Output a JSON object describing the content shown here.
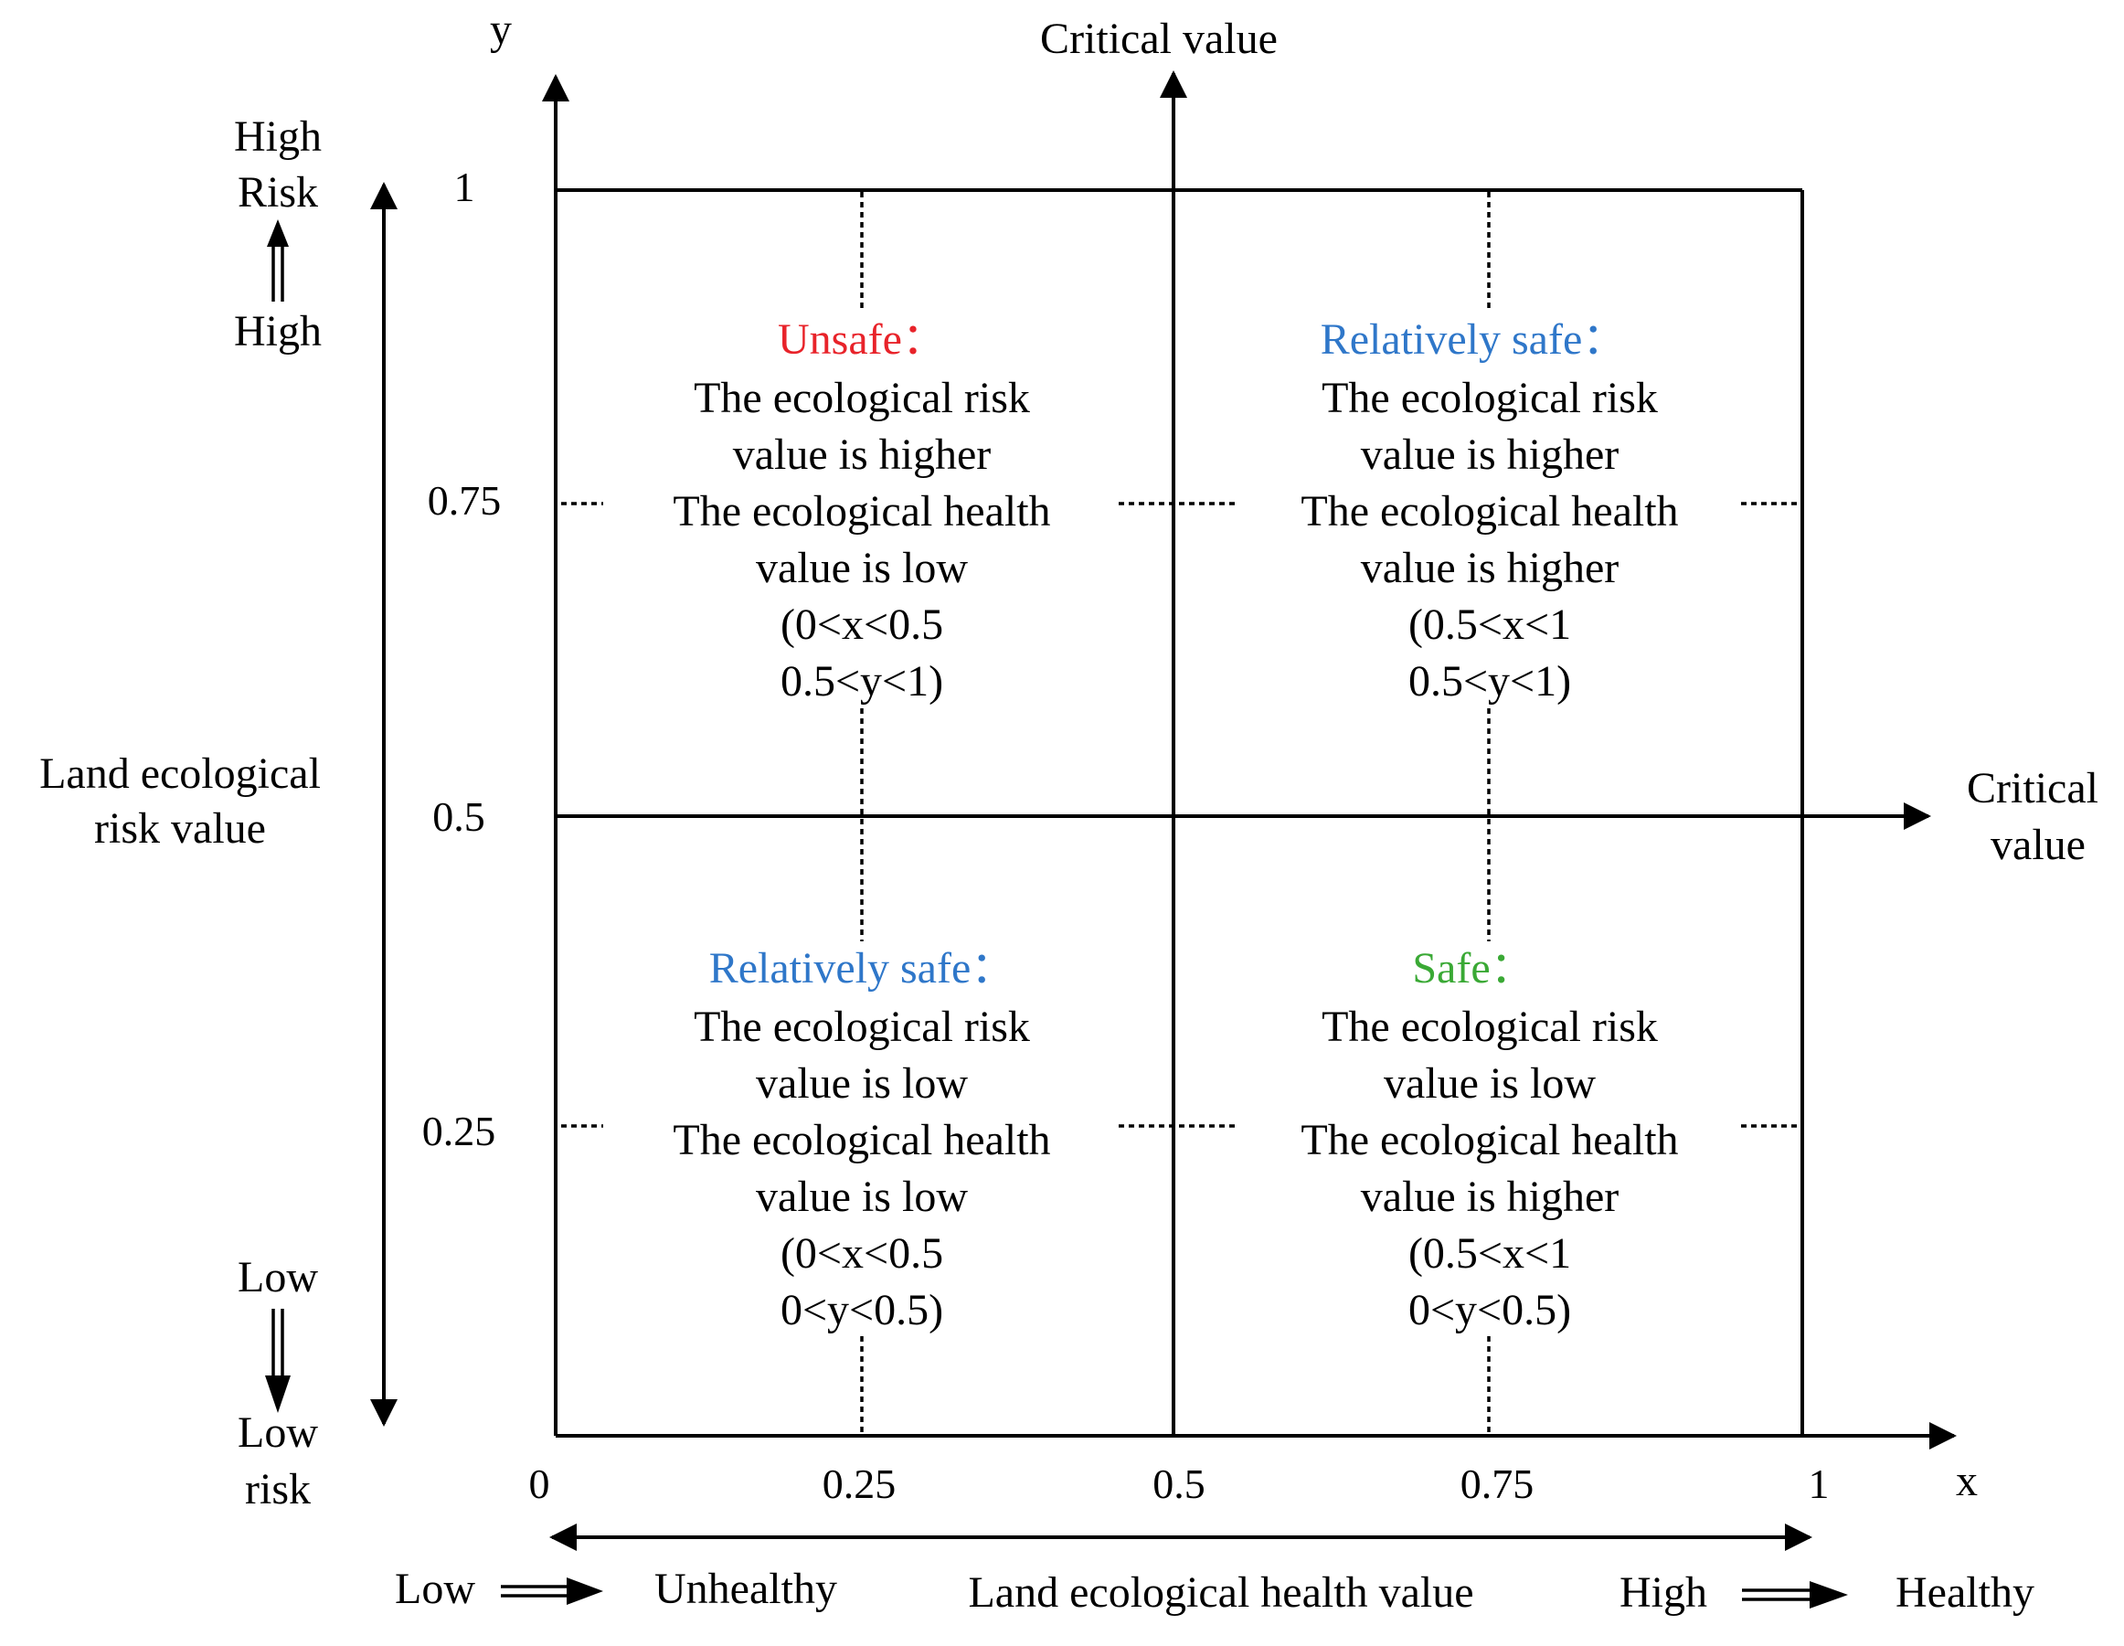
{
  "axes": {
    "y_label": "y",
    "x_label": "x",
    "critical_value_top": "Critical value",
    "critical_value_right_line1": "Critical",
    "critical_value_right_line2": "value",
    "y_ticks": [
      "1",
      "0.75",
      "0.5",
      "0.25"
    ],
    "x_ticks": [
      "0",
      "0.25",
      "0.5",
      "0.75",
      "1"
    ]
  },
  "left_scale": {
    "top_line1": "High",
    "top_line2": "Risk",
    "top_mid": "High",
    "bottom_mid": "Low",
    "bottom_line1": "Low",
    "bottom_line2": "risk",
    "axis_title_line1": "Land ecological",
    "axis_title_line2": "risk value"
  },
  "bottom_scale": {
    "low": "Low",
    "unhealthy": "Unhealthy",
    "title": "Land ecological health value",
    "high": "High",
    "healthy": "Healthy"
  },
  "colors": {
    "unsafe": "#e8232a",
    "relatively_safe": "#2f77c9",
    "safe": "#3aa935",
    "text": "#000000"
  },
  "quadrants": {
    "top_left": {
      "title": "Unsafe：",
      "lines": [
        "The ecological risk",
        "value is higher",
        "The ecological health",
        "value is low",
        "(0<x<0.5",
        "0.5<y<1)"
      ]
    },
    "top_right": {
      "title": "Relatively safe：",
      "lines": [
        "The ecological risk",
        "value is higher",
        "The ecological health",
        "value is higher",
        "(0.5<x<1",
        "0.5<y<1)"
      ]
    },
    "bottom_left": {
      "title": "Relatively safe：",
      "lines": [
        "The ecological risk",
        "value is low",
        "The ecological health",
        "value is low",
        "(0<x<0.5",
        "0<y<0.5)"
      ]
    },
    "bottom_right": {
      "title": "Safe：",
      "lines": [
        "The ecological risk",
        "value is low",
        "The ecological health",
        "value is higher",
        "(0.5<x<1",
        "0<y<0.5)"
      ]
    }
  }
}
